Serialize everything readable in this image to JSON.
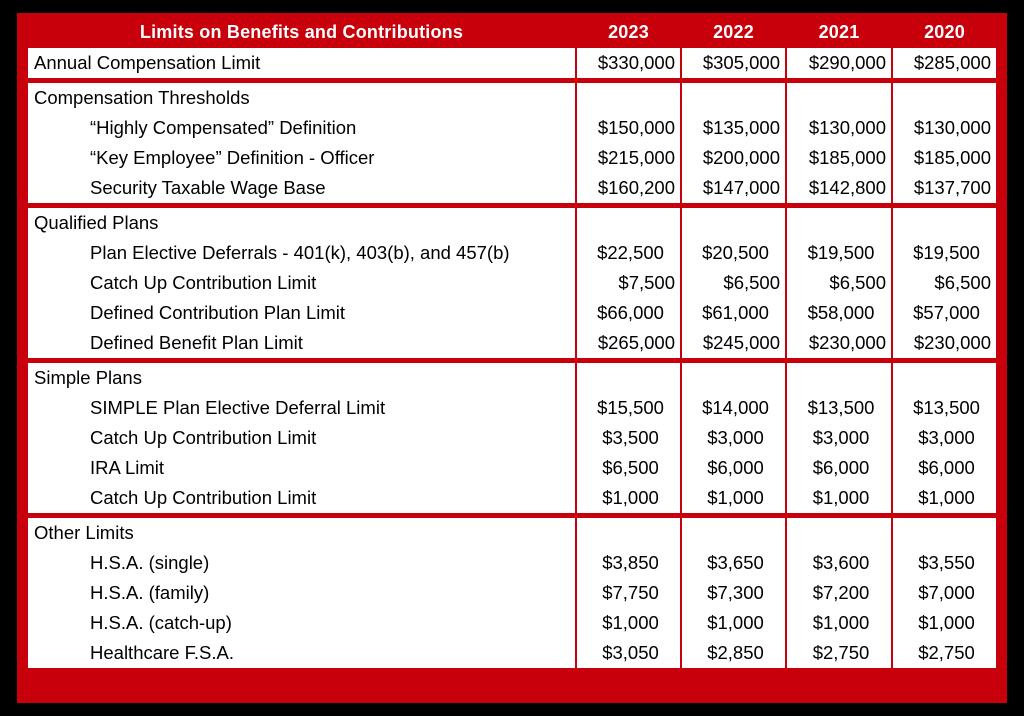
{
  "header": {
    "title": "Limits on Benefits and Contributions",
    "years": [
      "2023",
      "2022",
      "2021",
      "2020"
    ]
  },
  "top_rows": [
    {
      "label": "Annual Compensation Limit",
      "values": [
        "$330,000",
        "$305,000",
        "$290,000",
        "$285,000"
      ]
    }
  ],
  "sections": [
    {
      "title": "Compensation Thresholds",
      "rows": [
        {
          "label": "“Highly Compensated” Definition",
          "values": [
            "$150,000",
            "$135,000",
            "$130,000",
            "$130,000"
          ]
        },
        {
          "label": "“Key Employee” Definition - Officer",
          "values": [
            "$215,000",
            "$200,000",
            "$185,000",
            "$185,000"
          ]
        },
        {
          "label": "Security Taxable Wage Base",
          "values": [
            "$160,200",
            "$147,000",
            "$142,800",
            "$137,700"
          ]
        }
      ]
    },
    {
      "title": "Qualified Plans",
      "rows": [
        {
          "label": "Plan Elective Deferrals - 401(k), 403(b), and 457(b)",
          "values": [
            "$22,500",
            "$20,500",
            "$19,500",
            "$19,500"
          ]
        },
        {
          "label": "Catch Up Contribution Limit",
          "values": [
            "$7,500",
            "$6,500",
            "$6,500",
            "$6,500"
          ]
        },
        {
          "label": "Defined Contribution Plan Limit",
          "values": [
            "$66,000",
            "$61,000",
            "$58,000",
            "$57,000"
          ]
        },
        {
          "label": "Defined Benefit Plan Limit",
          "values": [
            "$265,000",
            "$245,000",
            "$230,000",
            "$230,000"
          ]
        }
      ]
    },
    {
      "title": "Simple Plans",
      "rows": [
        {
          "label": "SIMPLE Plan Elective Deferral Limit",
          "values": [
            "$15,500",
            "$14,000",
            "$13,500",
            "$13,500"
          ]
        },
        {
          "label": "Catch Up Contribution  Limit",
          "values": [
            "$3,500",
            "$3,000",
            "$3,000",
            "$3,000"
          ]
        },
        {
          "label": "IRA Limit",
          "values": [
            "$6,500",
            "$6,000",
            "$6,000",
            "$6,000"
          ]
        },
        {
          "label": "Catch Up Contribution Limit",
          "values": [
            "$1,000",
            "$1,000",
            "$1,000",
            "$1,000"
          ]
        }
      ]
    },
    {
      "title": "Other Limits",
      "rows": [
        {
          "label": "H.S.A. (single)",
          "values": [
            "$3,850",
            "$3,650",
            "$3,600",
            "$3,550"
          ]
        },
        {
          "label": "H.S.A. (family)",
          "values": [
            "$7,750",
            "$7,300",
            "$7,200",
            "$7,000"
          ]
        },
        {
          "label": "H.S.A. (catch-up)",
          "values": [
            "$1,000",
            "$1,000",
            "$1,000",
            "$1,000"
          ]
        },
        {
          "label": "Healthcare F.S.A.",
          "values": [
            "$3,050",
            "$2,850",
            "$2,750",
            "$2,750"
          ]
        }
      ]
    }
  ],
  "colors": {
    "frame": "#c8000c",
    "background": "#000000",
    "cell": "#ffffff"
  }
}
